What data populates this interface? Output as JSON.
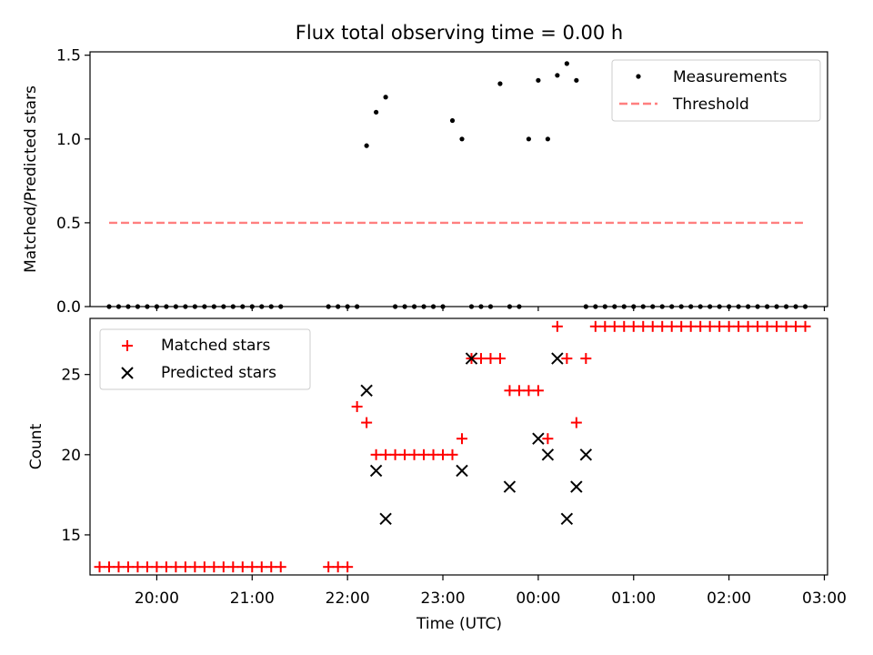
{
  "chart_data": [
    {
      "type": "scatter",
      "title": "Flux total observing time = 0.00 h",
      "ylabel": "Matched/Predicted stars",
      "xlabel": "",
      "xlim": [
        "19:18",
        "03:02"
      ],
      "ylim": [
        0,
        1.52
      ],
      "yticks": [
        0.0,
        0.5,
        1.0,
        1.5
      ],
      "ytick_labels": [
        "0.0",
        "0.5",
        "1.0",
        "1.5"
      ],
      "grid": false,
      "legend_position": "top-right",
      "series": [
        {
          "name": "Measurements",
          "color": "#000000",
          "marker": "dot",
          "x": [
            "19:30",
            "19:36",
            "19:42",
            "19:48",
            "19:54",
            "20:00",
            "20:06",
            "20:12",
            "20:18",
            "20:24",
            "20:30",
            "20:36",
            "20:42",
            "20:48",
            "20:54",
            "21:00",
            "21:06",
            "21:12",
            "21:18",
            "21:48",
            "21:54",
            "22:00",
            "22:06",
            "22:12",
            "22:18",
            "22:24",
            "22:30",
            "22:36",
            "22:42",
            "22:48",
            "22:54",
            "23:00",
            "23:06",
            "23:12",
            "23:18",
            "23:24",
            "23:30",
            "23:36",
            "23:42",
            "23:48",
            "23:54",
            "00:00",
            "00:06",
            "00:12",
            "00:18",
            "00:24",
            "00:30",
            "00:36",
            "00:42",
            "00:48",
            "00:54",
            "01:00",
            "01:06",
            "01:12",
            "01:18",
            "01:24",
            "01:30",
            "01:36",
            "01:42",
            "01:48",
            "01:54",
            "02:00",
            "02:06",
            "02:12",
            "02:18",
            "02:24",
            "02:30",
            "02:36",
            "02:42",
            "02:48"
          ],
          "y": [
            0,
            0,
            0,
            0,
            0,
            0,
            0,
            0,
            0,
            0,
            0,
            0,
            0,
            0,
            0,
            0,
            0,
            0,
            0,
            0,
            0,
            0,
            0,
            0.96,
            1.16,
            1.25,
            0,
            0,
            0,
            0,
            0,
            0,
            1.11,
            1.0,
            0,
            0,
            0,
            1.33,
            0,
            0,
            1.0,
            1.35,
            1.0,
            1.38,
            1.45,
            1.35,
            0,
            0,
            0,
            0,
            0,
            0,
            0,
            0,
            0,
            0,
            0,
            0,
            0,
            0,
            0,
            0,
            0,
            0,
            0,
            0,
            0,
            0,
            0,
            0
          ]
        },
        {
          "name": "Threshold",
          "color": "#ff7f7f",
          "style": "dashed",
          "x": [
            "19:30",
            "02:48"
          ],
          "y": [
            0.5,
            0.5
          ]
        }
      ]
    },
    {
      "type": "scatter",
      "title": "",
      "ylabel": "Count",
      "xlabel": "Time (UTC)",
      "xlim": [
        "19:18",
        "03:02"
      ],
      "ylim": [
        12.5,
        28.5
      ],
      "yticks": [
        15,
        20,
        25
      ],
      "ytick_labels": [
        "15",
        "20",
        "25"
      ],
      "xticks": [
        "20:00",
        "21:00",
        "22:00",
        "23:00",
        "00:00",
        "01:00",
        "02:00",
        "03:00"
      ],
      "grid": false,
      "legend_position": "top-left",
      "series": [
        {
          "name": "Matched stars",
          "color": "#ff0000",
          "marker": "plus",
          "x": [
            "19:24",
            "19:30",
            "19:36",
            "19:42",
            "19:48",
            "19:54",
            "20:00",
            "20:06",
            "20:12",
            "20:18",
            "20:24",
            "20:30",
            "20:36",
            "20:42",
            "20:48",
            "20:54",
            "21:00",
            "21:06",
            "21:12",
            "21:18",
            "21:48",
            "21:54",
            "22:00",
            "22:06",
            "22:12",
            "22:18",
            "22:24",
            "22:30",
            "22:36",
            "22:42",
            "22:48",
            "22:54",
            "23:00",
            "23:06",
            "23:12",
            "23:18",
            "23:24",
            "23:30",
            "23:36",
            "23:42",
            "23:48",
            "23:54",
            "00:00",
            "00:06",
            "00:12",
            "00:18",
            "00:24",
            "00:30",
            "00:36",
            "00:42",
            "00:48",
            "00:54",
            "01:00",
            "01:06",
            "01:12",
            "01:18",
            "01:24",
            "01:30",
            "01:36",
            "01:42",
            "01:48",
            "01:54",
            "02:00",
            "02:06",
            "02:12",
            "02:18",
            "02:24",
            "02:30",
            "02:36",
            "02:42",
            "02:48"
          ],
          "y": [
            13,
            13,
            13,
            13,
            13,
            13,
            13,
            13,
            13,
            13,
            13,
            13,
            13,
            13,
            13,
            13,
            13,
            13,
            13,
            13,
            13,
            13,
            13,
            23,
            22,
            20,
            20,
            20,
            20,
            20,
            20,
            20,
            20,
            20,
            21,
            26,
            26,
            26,
            26,
            24,
            24,
            24,
            24,
            21,
            28,
            26,
            22,
            26,
            28,
            28,
            28,
            28,
            28,
            28,
            28,
            28,
            28,
            28,
            28,
            28,
            28,
            28,
            28,
            28,
            28,
            28,
            28,
            28,
            28,
            28,
            28
          ]
        },
        {
          "name": "Predicted stars",
          "color": "#000000",
          "marker": "x",
          "x": [
            "22:12",
            "22:18",
            "22:24",
            "23:12",
            "23:18",
            "23:42",
            "00:00",
            "00:06",
            "00:12",
            "00:18",
            "00:24",
            "00:30"
          ],
          "y": [
            24,
            19,
            16,
            19,
            26,
            18,
            21,
            20,
            26,
            16,
            18,
            20
          ]
        }
      ]
    }
  ]
}
